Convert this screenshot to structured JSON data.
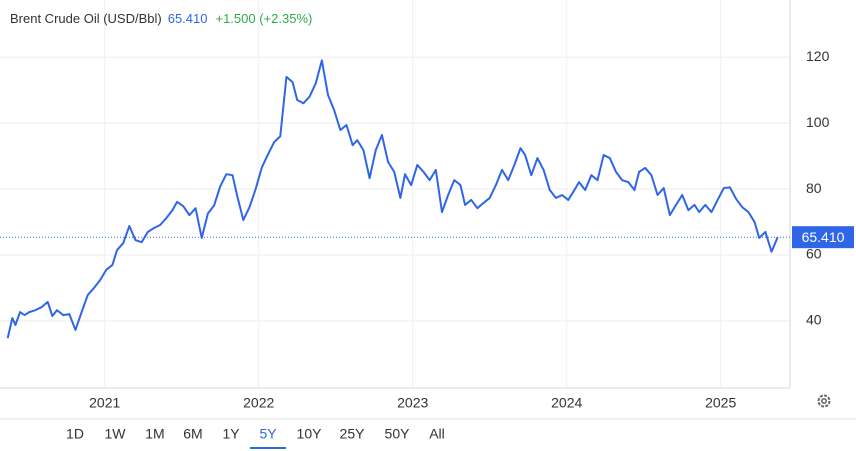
{
  "header": {
    "title": "Brent Crude Oil (USD/Bbl)",
    "price": "65.410",
    "change": "+1.500 (+2.35%)"
  },
  "chart_data": {
    "type": "line",
    "color": "#2f66e8",
    "x": [
      2020.37,
      2020.4,
      2020.42,
      2020.45,
      2020.48,
      2020.51,
      2020.55,
      2020.59,
      2020.63,
      2020.66,
      2020.69,
      2020.73,
      2020.77,
      2020.81,
      2020.85,
      2020.89,
      2020.93,
      2020.97,
      2021.01,
      2021.05,
      2021.08,
      2021.12,
      2021.16,
      2021.2,
      2021.24,
      2021.28,
      2021.32,
      2021.36,
      2021.4,
      2021.44,
      2021.47,
      2021.51,
      2021.55,
      2021.59,
      2021.63,
      2021.67,
      2021.71,
      2021.75,
      2021.79,
      2021.83,
      2021.86,
      2021.9,
      2021.94,
      2021.98,
      2022.02,
      2022.06,
      2022.1,
      2022.14,
      2022.18,
      2022.22,
      2022.25,
      2022.29,
      2022.33,
      2022.37,
      2022.41,
      2022.45,
      2022.49,
      2022.53,
      2022.57,
      2022.61,
      2022.64,
      2022.68,
      2022.72,
      2022.76,
      2022.8,
      2022.84,
      2022.88,
      2022.92,
      2022.95,
      2022.99,
      2023.03,
      2023.07,
      2023.11,
      2023.15,
      2023.19,
      2023.23,
      2023.27,
      2023.31,
      2023.34,
      2023.38,
      2023.42,
      2023.46,
      2023.5,
      2023.54,
      2023.58,
      2023.62,
      2023.66,
      2023.7,
      2023.73,
      2023.77,
      2023.81,
      2023.85,
      2023.89,
      2023.93,
      2023.97,
      2024.01,
      2024.05,
      2024.08,
      2024.12,
      2024.16,
      2024.2,
      2024.24,
      2024.28,
      2024.32,
      2024.36,
      2024.4,
      2024.44,
      2024.47,
      2024.51,
      2024.55,
      2024.59,
      2024.63,
      2024.67,
      2024.71,
      2024.75,
      2024.79,
      2024.83,
      2024.86,
      2024.9,
      2024.94,
      2024.98,
      2025.02,
      2025.06,
      2025.1,
      2025.14,
      2025.18,
      2025.22,
      2025.25,
      2025.29,
      2025.33,
      2025.37
    ],
    "values": [
      34.8,
      40.9,
      38.8,
      42.7,
      41.8,
      42.7,
      43.3,
      44.2,
      45.8,
      41.5,
      43.3,
      41.8,
      42.1,
      37.3,
      42.7,
      47.9,
      50,
      52.4,
      55.5,
      57,
      61.5,
      63.6,
      68.8,
      64.5,
      63.9,
      67,
      68.2,
      69.1,
      71.2,
      73.6,
      76.1,
      74.8,
      72.1,
      74.2,
      65.2,
      72.6,
      75,
      80.8,
      84.5,
      84.2,
      78,
      70.6,
      74.5,
      80,
      86.5,
      90.5,
      94.2,
      96,
      114,
      112.4,
      107,
      106,
      108,
      112,
      119,
      108.5,
      103.9,
      97.9,
      99.4,
      93.3,
      94.8,
      91.8,
      83.3,
      91.8,
      96.4,
      88.2,
      85.2,
      77.3,
      84.5,
      81.2,
      87.3,
      85.2,
      82.7,
      85.8,
      73,
      78.2,
      82.7,
      81.2,
      75.2,
      76.7,
      74.2,
      75.8,
      77.3,
      81.2,
      85.8,
      82.7,
      87.3,
      92.4,
      90.3,
      84.2,
      89.4,
      85.8,
      79.7,
      77.3,
      78.2,
      76.7,
      79.7,
      82.1,
      79.7,
      84.2,
      82.7,
      90.3,
      89.4,
      85.2,
      82.7,
      82.1,
      79.7,
      85.2,
      86.4,
      84.2,
      78.2,
      80.3,
      72.1,
      75.2,
      78.2,
      73.6,
      75.2,
      73,
      75.2,
      73,
      76.7,
      80.3,
      80.5,
      77,
      74.5,
      73,
      70,
      65.2,
      67,
      61,
      65.41
    ],
    "xlim": [
      2020.32,
      2025.45
    ],
    "xticks": [
      2021,
      2022,
      2023,
      2024,
      2025
    ],
    "ylim": [
      19.7,
      137.3
    ],
    "yticks": [
      40,
      60,
      80,
      100,
      120
    ],
    "grid": true
  },
  "ranges": {
    "items": [
      "1D",
      "1W",
      "1M",
      "6M",
      "1Y",
      "5Y",
      "10Y",
      "25Y",
      "50Y",
      "All"
    ],
    "selected": 5
  }
}
